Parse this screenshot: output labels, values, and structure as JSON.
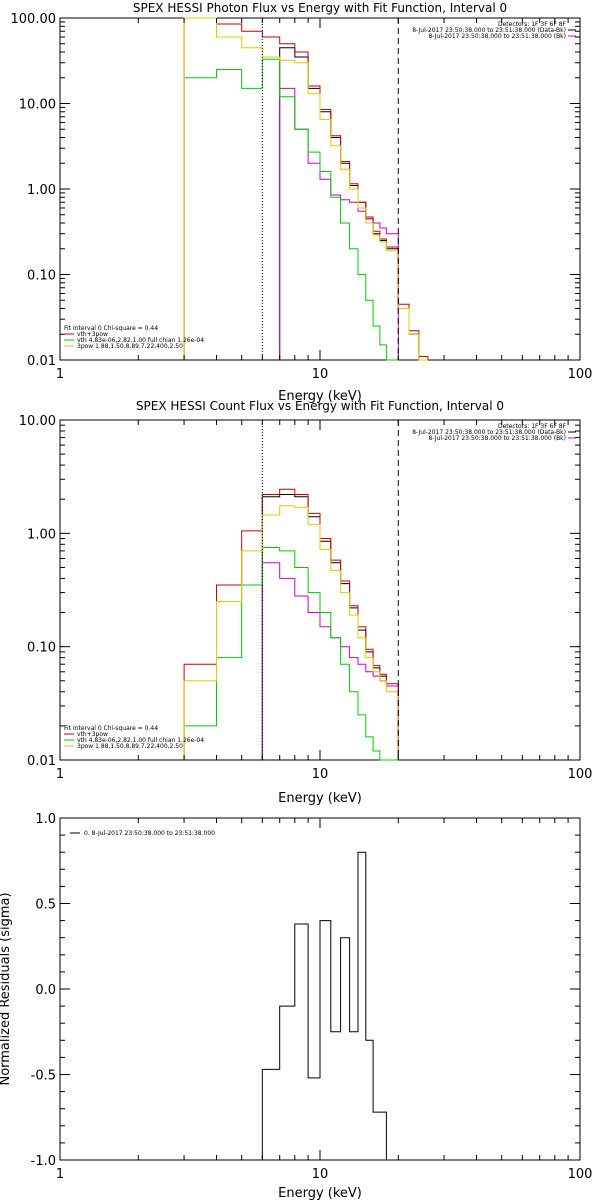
{
  "chart_data": [
    {
      "type": "line",
      "title": "SPEX HESSI Photon Flux vs Energy with Fit Function, Interval 0",
      "xlabel": "Energy (keV)",
      "ylabel": "",
      "x_scale": "log",
      "y_scale": "log",
      "xlim": [
        1,
        100
      ],
      "ylim": [
        0.01,
        100
      ],
      "x_ticks": [
        "1",
        "10",
        "100"
      ],
      "y_ticks": [
        "0.01",
        "0.10",
        "1.00",
        "10.00",
        "100.00"
      ],
      "legend_top": [
        "Detectors: 1F 3F 6F 8F",
        "8-Jul-2017 23:50:38.000 to 23:51:38.000 (Data-Bk)",
        "8-Jul-2017 23:50:38.000 to 23:51:38.000 (Bk)"
      ],
      "legend_bottom": [
        "Fit Interval 0   Chi-square = 0.44",
        "vth+3pow",
        "vth 4.83e-06,2.82,1.00  full chian 1.26e-04",
        "3pow 1.88,1.50,8.89,7.22,400,2.50"
      ],
      "vlines": [
        6.0,
        20.0
      ],
      "edges": [
        3.0,
        4.0,
        5.0,
        6.0,
        7.0,
        8.0,
        9.0,
        10.0,
        11.0,
        12.0,
        13.0,
        14.0,
        15.0,
        16.0,
        17.0,
        18.0,
        20.0,
        22.0,
        24.0,
        26.0
      ],
      "series": [
        {
          "name": "Data-Bk",
          "color": "#000000",
          "values": [
            null,
            null,
            null,
            null,
            45,
            35,
            15,
            8,
            4,
            2,
            1.1,
            0.7,
            0.45,
            0.3,
            0.25,
            0.2,
            0.04,
            0.02,
            0.01
          ]
        },
        {
          "name": "Bk",
          "color": "#cc00cc",
          "values": [
            null,
            null,
            null,
            null,
            15,
            5,
            2,
            1.3,
            0.85,
            0.75,
            0.7,
            0.55,
            0.45,
            0.4,
            0.35,
            0.3,
            null,
            null,
            null
          ]
        },
        {
          "name": "vth+3pow",
          "color": "#cc0000",
          "values": [
            100,
            85,
            70,
            60,
            50,
            40,
            16,
            8.5,
            4.2,
            2.1,
            1.15,
            0.7,
            0.47,
            0.32,
            0.26,
            0.21,
            0.045,
            0.022,
            0.011
          ]
        },
        {
          "name": "vth",
          "color": "#00cc00",
          "values": [
            20,
            25,
            15,
            33,
            12,
            5,
            2.7,
            1.6,
            0.8,
            0.4,
            0.2,
            0.1,
            0.05,
            0.025,
            0.015,
            0.01,
            null,
            null,
            null
          ]
        },
        {
          "name": "3pow",
          "color": "#e6c800",
          "values": [
            100,
            60,
            45,
            35,
            32,
            30,
            13,
            6.5,
            3.2,
            1.7,
            1.0,
            0.6,
            0.4,
            0.29,
            0.24,
            0.19,
            0.04,
            0.02,
            0.01
          ]
        }
      ]
    },
    {
      "type": "line",
      "title": "SPEX HESSI Count Flux vs Energy with Fit Function, Interval 0",
      "xlabel": "Energy (keV)",
      "ylabel": "",
      "x_scale": "log",
      "y_scale": "log",
      "xlim": [
        1,
        100
      ],
      "ylim": [
        0.01,
        10
      ],
      "x_ticks": [
        "1",
        "10",
        "100"
      ],
      "y_ticks": [
        "0.01",
        "0.10",
        "1.00",
        "10.00"
      ],
      "legend_top": [
        "Detectors: 1F 3F 6F 8F",
        "8-Jul-2017 23:50:38.000 to 23:51:38.000 (Data-Bk)",
        "8-Jul-2017 23:50:38.000 to 23:51:38.000 (Bk)"
      ],
      "legend_bottom": [
        "Fit Interval 0   Chi-square = 0.44",
        "vth+3pow",
        "vth 4.83e-06,2.82,1.00  full chian 1.26e-04",
        "3pow 1.88,1.50,8.89,7.22,400,2.50"
      ],
      "vlines": [
        6.0,
        20.0
      ],
      "edges": [
        3.0,
        4.0,
        5.0,
        6.0,
        7.0,
        8.0,
        9.0,
        10.0,
        11.0,
        12.0,
        13.0,
        14.0,
        15.0,
        16.0,
        17.0,
        18.0,
        20.0
      ],
      "series": [
        {
          "name": "Data-Bk",
          "color": "#000000",
          "values": [
            null,
            null,
            null,
            2.1,
            2.2,
            2.1,
            1.4,
            0.85,
            0.55,
            0.36,
            0.22,
            0.14,
            0.09,
            0.065,
            0.055,
            0.045
          ]
        },
        {
          "name": "Bk",
          "color": "#cc00cc",
          "values": [
            null,
            null,
            null,
            0.55,
            0.4,
            0.28,
            0.2,
            0.15,
            0.12,
            0.1,
            0.08,
            0.07,
            0.06,
            0.055,
            0.05,
            0.045
          ]
        },
        {
          "name": "vth+3pow",
          "color": "#cc0000",
          "values": [
            0.07,
            0.35,
            1.05,
            2.2,
            2.45,
            2.2,
            1.5,
            0.9,
            0.58,
            0.38,
            0.23,
            0.15,
            0.095,
            0.068,
            0.057,
            0.047
          ]
        },
        {
          "name": "vth",
          "color": "#00cc00",
          "values": [
            0.02,
            0.08,
            0.35,
            0.75,
            0.7,
            0.5,
            0.3,
            0.2,
            0.12,
            0.07,
            0.04,
            0.025,
            0.016,
            0.012,
            0.01,
            0.01
          ]
        },
        {
          "name": "3pow",
          "color": "#e6c800",
          "values": [
            0.05,
            0.25,
            0.7,
            1.45,
            1.75,
            1.7,
            1.2,
            0.72,
            0.47,
            0.3,
            0.19,
            0.12,
            0.08,
            0.06,
            0.05,
            0.04
          ]
        }
      ]
    },
    {
      "type": "line",
      "title": "",
      "xlabel": "Energy (keV)",
      "ylabel": "Normalized Residuals (sigma)",
      "x_scale": "log",
      "y_scale": "linear",
      "xlim": [
        1,
        100
      ],
      "ylim": [
        -1.0,
        1.0
      ],
      "x_ticks": [
        "1",
        "10",
        "100"
      ],
      "y_ticks": [
        "-1.0",
        "-0.5",
        "0.0",
        "0.5",
        "1.0"
      ],
      "legend_top": [
        "0. 8-Jul-2017 23:50:38.000 to 23:51:38.000"
      ],
      "edges": [
        6.0,
        7.0,
        8.0,
        9.0,
        10.0,
        11.0,
        12.0,
        13.0,
        14.0,
        15.0,
        16.0,
        18.0,
        20.0
      ],
      "series": [
        {
          "name": "",
          "color": "#000000",
          "values": [
            -0.47,
            -0.1,
            0.38,
            -0.52,
            0.4,
            -0.25,
            0.3,
            -0.25,
            0.8,
            -0.3,
            -0.72,
            -1.0
          ]
        }
      ]
    }
  ]
}
